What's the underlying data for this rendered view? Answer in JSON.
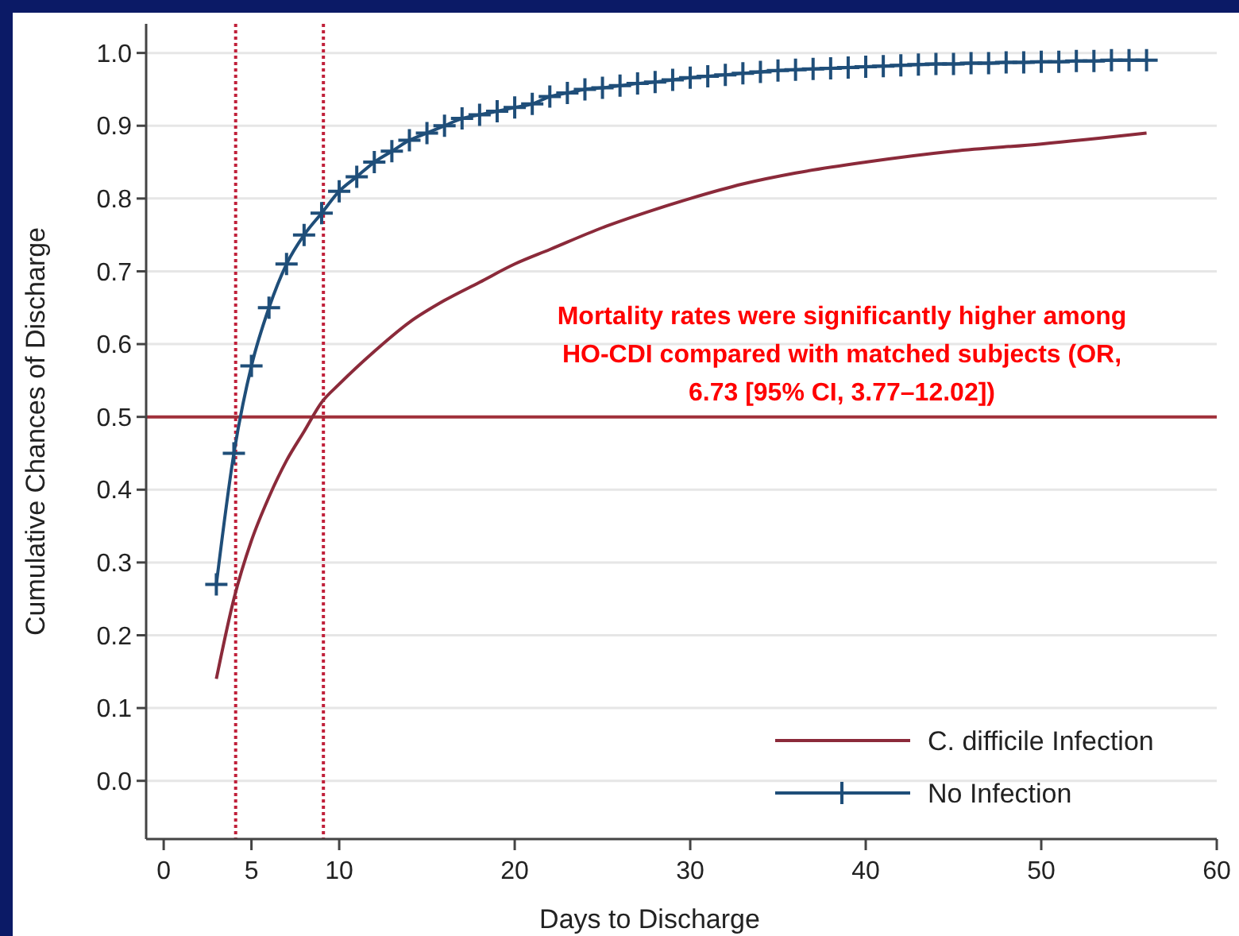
{
  "chart_data": {
    "type": "line",
    "xlabel": "Days to Discharge",
    "ylabel": "Cumulative Chances of Discharge",
    "xlim": [
      -1,
      60
    ],
    "ylim": [
      -0.08,
      1.04
    ],
    "xticks": [
      0,
      5,
      10,
      20,
      30,
      40,
      50,
      60
    ],
    "yticks": [
      {
        "value": 0,
        "label": "0.0"
      },
      {
        "value": 0.1,
        "label": "0.1"
      },
      {
        "value": 0.2,
        "label": "0.2"
      },
      {
        "value": 0.3,
        "label": "0.3"
      },
      {
        "value": 0.4,
        "label": "0.4"
      },
      {
        "value": 0.5,
        "label": "0.5"
      },
      {
        "value": 0.6,
        "label": "0.6"
      },
      {
        "value": 0.7,
        "label": "0.7"
      },
      {
        "value": 0.8,
        "label": "0.8"
      },
      {
        "value": 0.9,
        "label": "0.9"
      },
      {
        "value": 1,
        "label": "1.0"
      }
    ],
    "grid": "y",
    "legend": "bottom right",
    "series": [
      {
        "name": "C. difficile Infection",
        "color": "#8b2a3a",
        "marker": "none",
        "x": [
          3,
          4,
          5,
          6,
          7,
          8,
          9,
          10,
          12,
          14,
          16,
          18,
          20,
          22,
          25,
          28,
          30,
          33,
          36,
          40,
          45,
          50,
          56
        ],
        "values": [
          0.14,
          0.25,
          0.33,
          0.39,
          0.44,
          0.48,
          0.52,
          0.545,
          0.59,
          0.63,
          0.66,
          0.685,
          0.71,
          0.73,
          0.76,
          0.785,
          0.8,
          0.82,
          0.835,
          0.85,
          0.865,
          0.875,
          0.89
        ]
      },
      {
        "name": "No Infection",
        "color": "#1f4e79",
        "marker": "cross",
        "x": [
          3,
          4,
          5,
          6,
          7,
          8,
          9,
          10,
          11,
          12,
          13,
          14,
          15,
          16,
          17,
          18,
          19,
          20,
          21,
          22,
          23,
          24,
          25,
          26,
          27,
          28,
          29,
          30,
          31,
          32,
          33,
          34,
          35,
          36,
          37,
          38,
          39,
          40,
          41,
          42,
          43,
          44,
          45,
          46,
          47,
          48,
          49,
          50,
          51,
          52,
          53,
          54,
          55,
          56
        ],
        "values": [
          0.27,
          0.45,
          0.57,
          0.65,
          0.71,
          0.75,
          0.78,
          0.81,
          0.83,
          0.85,
          0.865,
          0.88,
          0.89,
          0.9,
          0.91,
          0.915,
          0.92,
          0.925,
          0.93,
          0.94,
          0.945,
          0.95,
          0.952,
          0.955,
          0.958,
          0.96,
          0.963,
          0.966,
          0.968,
          0.97,
          0.972,
          0.974,
          0.976,
          0.977,
          0.978,
          0.979,
          0.98,
          0.981,
          0.982,
          0.983,
          0.984,
          0.985,
          0.985,
          0.986,
          0.986,
          0.987,
          0.987,
          0.988,
          0.988,
          0.989,
          0.989,
          0.99,
          0.99,
          0.99
        ]
      }
    ],
    "ref_lines": [
      {
        "axis": "x",
        "value": 4.1,
        "color": "#c0203a",
        "line_style": "dotted"
      },
      {
        "axis": "x",
        "value": 9.1,
        "color": "#c0203a",
        "line_style": "dotted"
      },
      {
        "axis": "y",
        "value": 0.5,
        "color": "#a0303a",
        "line_style": "solid"
      }
    ],
    "annotations": [
      "Mortality rates were significantly higher among\nHO-CDI compared with matched subjects (OR,\n6.73 [95% CI, 3.77–12.02])"
    ]
  }
}
